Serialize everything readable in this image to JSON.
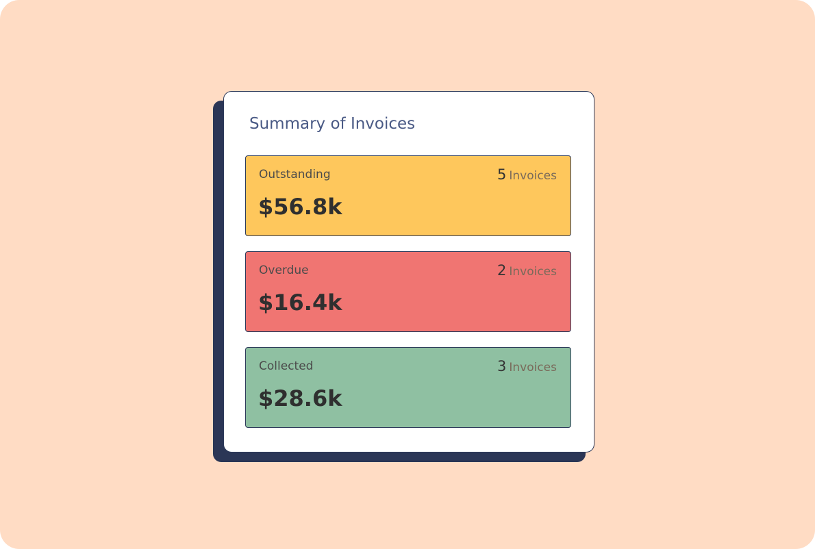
{
  "header": {
    "title": "Summary of Invoices"
  },
  "cards": [
    {
      "label": "Outstanding",
      "amount": "$56.8k",
      "count": 5,
      "count_label": "Invoices",
      "color": "#fec75c"
    },
    {
      "label": "Overdue",
      "amount": "$16.4k",
      "count": 2,
      "count_label": "Invoices",
      "color": "#f07572"
    },
    {
      "label": "Collected",
      "amount": "$28.6k",
      "count": 3,
      "count_label": "Invoices",
      "color": "#8fc0a2"
    }
  ]
}
